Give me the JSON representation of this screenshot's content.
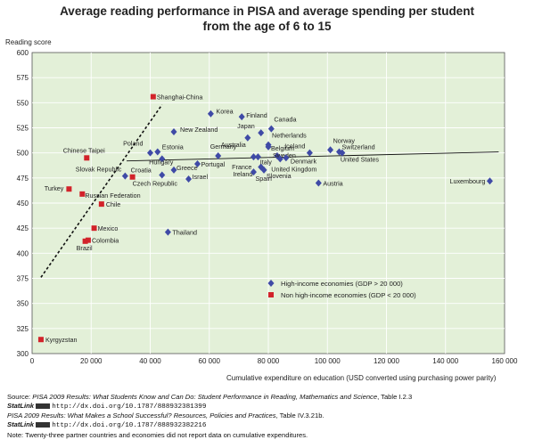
{
  "header": {
    "title_line1": "Average reading performance in PISA and average spending per student",
    "title_line2": "from the age of 6 to 15"
  },
  "chart_data": {
    "type": "scatter",
    "ylabel": "Reading score",
    "xlabel": "Cumulative expenditure on education (USD converted using purchasing power parity)",
    "xlim": [
      0,
      160000
    ],
    "ylim": [
      300,
      600
    ],
    "x_ticks": [
      "0",
      "20 000",
      "40 000",
      "60 000",
      "80 000",
      "100 000",
      "120 000",
      "140 000",
      "160 000"
    ],
    "y_ticks": [
      "300",
      "325",
      "350",
      "375",
      "400",
      "425",
      "450",
      "475",
      "500",
      "525",
      "550",
      "575",
      "600"
    ],
    "grid": true,
    "legend_position": "bottom-right",
    "colors": {
      "plot_bg": "#e3f0d8",
      "high": "#3f4aa6",
      "non_high": "#d2232a"
    },
    "legend": [
      {
        "label": "High-income economies (GDP > 20 000)",
        "marker": "diamond"
      },
      {
        "label": "Non high-income economies (GDP < 20 000)",
        "marker": "square"
      }
    ],
    "series": [
      {
        "name": "High-income economies (GDP > 20 000)",
        "marker": "diamond",
        "points": [
          {
            "label": "Korea",
            "x": 60500,
            "y": 539
          },
          {
            "label": "Finland",
            "x": 71000,
            "y": 536
          },
          {
            "label": "Canada",
            "x": 81000,
            "y": 524
          },
          {
            "label": "New Zealand",
            "x": 48000,
            "y": 521
          },
          {
            "label": "Japan",
            "x": 77500,
            "y": 520
          },
          {
            "label": "Australia",
            "x": 73000,
            "y": 515
          },
          {
            "label": "Netherlands",
            "x": 80000,
            "y": 508
          },
          {
            "label": "Belgium",
            "x": 80000,
            "y": 506
          },
          {
            "label": "Norway",
            "x": 101000,
            "y": 503
          },
          {
            "label": "Estonia",
            "x": 42500,
            "y": 501
          },
          {
            "label": "Switzerland",
            "x": 104000,
            "y": 501
          },
          {
            "label": "Iceland",
            "x": 94000,
            "y": 500
          },
          {
            "label": "Poland",
            "x": 40000,
            "y": 500
          },
          {
            "label": "United States",
            "x": 105000,
            "y": 500
          },
          {
            "label": "Germany",
            "x": 63000,
            "y": 497
          },
          {
            "label": "Sweden",
            "x": 83000,
            "y": 497
          },
          {
            "label": "France",
            "x": 75000,
            "y": 496
          },
          {
            "label": "Ireland",
            "x": 76500,
            "y": 496
          },
          {
            "label": "Denmark",
            "x": 86000,
            "y": 495
          },
          {
            "label": "United Kingdom",
            "x": 84000,
            "y": 494
          },
          {
            "label": "Hungary",
            "x": 44000,
            "y": 494
          },
          {
            "label": "Portugal",
            "x": 56000,
            "y": 489
          },
          {
            "label": "Italy",
            "x": 77500,
            "y": 486
          },
          {
            "label": "Slovenia",
            "x": 78500,
            "y": 483
          },
          {
            "label": "Greece",
            "x": 48000,
            "y": 483
          },
          {
            "label": "Spain",
            "x": 75000,
            "y": 481
          },
          {
            "label": "Czech Republic",
            "x": 44000,
            "y": 478
          },
          {
            "label": "Slovak Republic",
            "x": 31500,
            "y": 477
          },
          {
            "label": "Israel",
            "x": 53000,
            "y": 474
          },
          {
            "label": "Luxembourg",
            "x": 155000,
            "y": 472
          },
          {
            "label": "Austria",
            "x": 97000,
            "y": 470
          },
          {
            "label": "Thailand",
            "x": 46000,
            "y": 421
          }
        ]
      },
      {
        "name": "Non high-income economies (GDP < 20 000)",
        "marker": "square",
        "points": [
          {
            "label": "Shanghai-China",
            "x": 41000,
            "y": 556
          },
          {
            "label": "Chinese Taipei",
            "x": 18500,
            "y": 495
          },
          {
            "label": "Croatia",
            "x": 34000,
            "y": 476
          },
          {
            "label": "Turkey",
            "x": 12500,
            "y": 464
          },
          {
            "label": "Russian Federation",
            "x": 17000,
            "y": 459
          },
          {
            "label": "Chile",
            "x": 23500,
            "y": 449
          },
          {
            "label": "Mexico",
            "x": 21000,
            "y": 425
          },
          {
            "label": "Colombia",
            "x": 19000,
            "y": 413
          },
          {
            "label": "Brazil",
            "x": 18000,
            "y": 412
          },
          {
            "label": "Kyrgyzstan",
            "x": 3000,
            "y": 314
          }
        ]
      }
    ],
    "trend_lines": [
      {
        "style": "dashed",
        "from": {
          "x": 3000,
          "y": 376
        },
        "to": {
          "x": 44000,
          "y": 548
        }
      },
      {
        "style": "solid",
        "from": {
          "x": 32000,
          "y": 492
        },
        "to": {
          "x": 158000,
          "y": 501
        }
      }
    ]
  },
  "footer": {
    "source_prefix": "Source: ",
    "source_title": "PISA 2009 Results: What Students Know and Can Do: Student Performance in Reading, Mathematics and Science",
    "source_suffix": ", Table I.2.3",
    "statlink_label": "StatLink",
    "statlink_url_1": "http://dx.doi.org/10.1787/888932381399",
    "source2_title": "PISA 2009 Results: What Makes a School Successful? Resources, Policies and Practices",
    "source2_suffix": ", Table IV.3.21b.",
    "statlink_url_2": "http://dx.doi.org/10.1787/888932382216",
    "note": "Note: Twenty-three partner countries and economies did not report data on cumulative expenditures."
  }
}
